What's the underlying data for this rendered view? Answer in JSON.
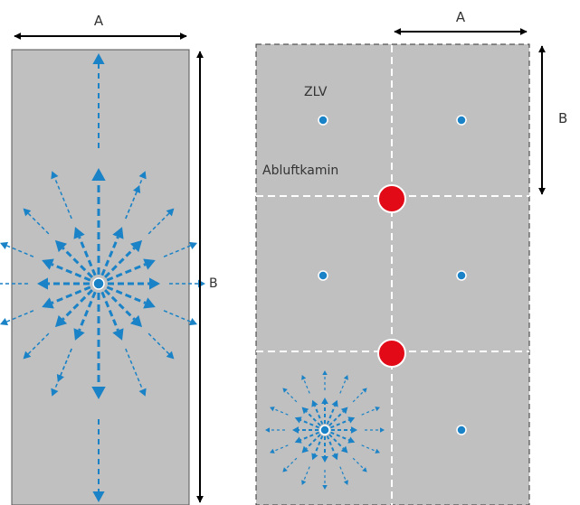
{
  "left_diagram": {
    "dim_width_label": "A",
    "dim_height_label": "B"
  },
  "right_diagram": {
    "dim_width_label": "A",
    "dim_height_label": "B",
    "zlv_label": "ZLV",
    "exhaust_label": "Abluftkamin"
  },
  "colors": {
    "panel_fill": "#c0c0c0",
    "arrow_blue": "#1a82c6",
    "exhaust_red": "#e20a17",
    "dim_black": "#000000"
  }
}
